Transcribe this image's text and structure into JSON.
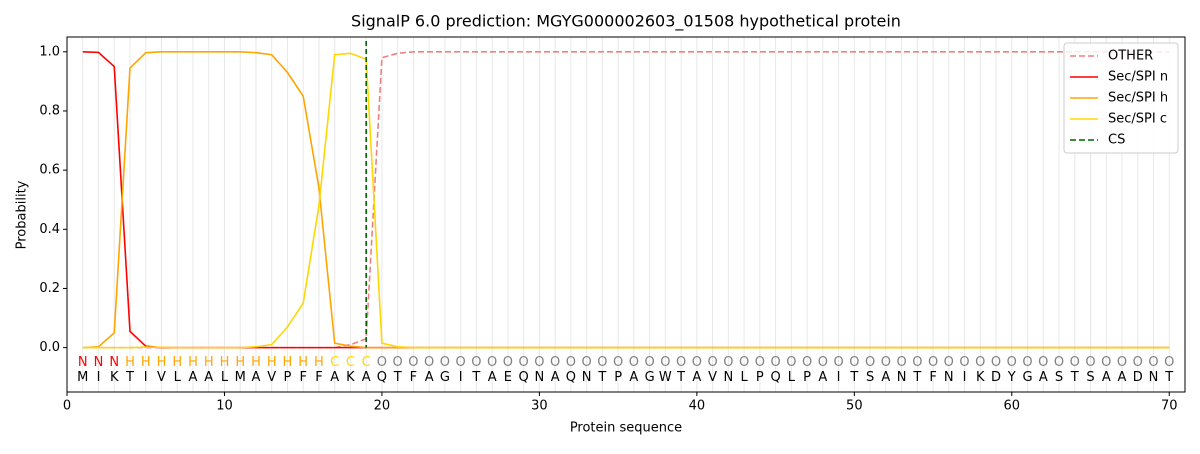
{
  "chart_data": {
    "type": "line",
    "title": "SignalP 6.0 prediction: MGYG000002603_01508 hypothetical protein",
    "xlabel": "Protein sequence",
    "ylabel": "Probability",
    "xlim": [
      0,
      71
    ],
    "ylim": [
      -0.15,
      1.05
    ],
    "xticks": [
      0,
      10,
      20,
      30,
      40,
      50,
      60,
      70
    ],
    "yticks": [
      {
        "value": 0,
        "label": "0.0"
      },
      {
        "value": 0.2,
        "label": "0.2"
      },
      {
        "value": 0.4,
        "label": "0.4"
      },
      {
        "value": 0.6,
        "label": "0.6"
      },
      {
        "value": 0.8,
        "label": "0.8"
      },
      {
        "value": 1,
        "label": "1.0"
      }
    ],
    "xgrid": true,
    "legend": "upper right",
    "x": [
      1,
      2,
      3,
      4,
      5,
      6,
      7,
      8,
      9,
      10,
      11,
      12,
      13,
      14,
      15,
      16,
      17,
      18,
      19,
      20,
      21,
      22,
      23,
      24,
      25,
      26,
      27,
      28,
      29,
      30,
      31,
      32,
      33,
      34,
      35,
      36,
      37,
      38,
      39,
      40,
      41,
      42,
      43,
      44,
      45,
      46,
      47,
      48,
      49,
      50,
      51,
      52,
      53,
      54,
      55,
      56,
      57,
      58,
      59,
      60,
      61,
      62,
      63,
      64,
      65,
      66,
      67,
      68,
      69,
      70
    ],
    "sequence": [
      "M",
      "I",
      "K",
      "T",
      "I",
      "V",
      "L",
      "A",
      "A",
      "L",
      "M",
      "A",
      "V",
      "P",
      "F",
      "F",
      "A",
      "K",
      "A",
      "Q",
      "T",
      "F",
      "A",
      "G",
      "I",
      "T",
      "A",
      "E",
      "Q",
      "N",
      "A",
      "Q",
      "N",
      "T",
      "P",
      "A",
      "G",
      "W",
      "T",
      "A",
      "V",
      "N",
      "L",
      "P",
      "Q",
      "L",
      "P",
      "A",
      "I",
      "T",
      "S",
      "A",
      "N",
      "T",
      "F",
      "N",
      "I",
      "K",
      "D",
      "Y",
      "G",
      "A",
      "S",
      "T",
      "S",
      "A",
      "A",
      "D",
      "N",
      "T"
    ],
    "labels": [
      "N",
      "N",
      "N",
      "H",
      "H",
      "H",
      "H",
      "H",
      "H",
      "H",
      "H",
      "H",
      "H",
      "H",
      "H",
      "H",
      "C",
      "C",
      "C",
      "O",
      "O",
      "O",
      "O",
      "O",
      "O",
      "O",
      "O",
      "O",
      "O",
      "O",
      "O",
      "O",
      "O",
      "O",
      "O",
      "O",
      "O",
      "O",
      "O",
      "O",
      "O",
      "O",
      "O",
      "O",
      "O",
      "O",
      "O",
      "O",
      "O",
      "O",
      "O",
      "O",
      "O",
      "O",
      "O",
      "O",
      "O",
      "O",
      "O",
      "O",
      "O",
      "O",
      "O",
      "O",
      "O",
      "O",
      "O",
      "O",
      "O",
      "O"
    ],
    "label_colors": {
      "N": "#ff0000",
      "H": "#ffa500",
      "C": "#ffd700",
      "O": "#808080"
    },
    "series": [
      {
        "name": "OTHER",
        "color": "#f08080",
        "dash": true,
        "values": [
          0,
          0,
          0,
          0,
          0,
          0,
          0,
          0,
          0,
          0,
          0,
          0,
          0,
          0,
          0,
          0,
          0,
          0.01,
          0.03,
          0.98,
          0.995,
          1,
          1,
          1,
          1,
          1,
          1,
          1,
          1,
          1,
          1,
          1,
          1,
          1,
          1,
          1,
          1,
          1,
          1,
          1,
          1,
          1,
          1,
          1,
          1,
          1,
          1,
          1,
          1,
          1,
          1,
          1,
          1,
          1,
          1,
          1,
          1,
          1,
          1,
          1,
          1,
          1,
          1,
          1,
          1,
          1,
          1,
          1,
          1,
          1
        ]
      },
      {
        "name": "Sec/SPI n",
        "color": "#ff0000",
        "values": [
          1,
          0.998,
          0.95,
          0.055,
          0.005,
          0,
          0,
          0,
          0,
          0,
          0,
          0,
          0,
          0,
          0,
          0,
          0,
          0,
          0,
          0,
          0,
          0,
          0,
          0,
          0,
          0,
          0,
          0,
          0,
          0,
          0,
          0,
          0,
          0,
          0,
          0,
          0,
          0,
          0,
          0,
          0,
          0,
          0,
          0,
          0,
          0,
          0,
          0,
          0,
          0,
          0,
          0,
          0,
          0,
          0,
          0,
          0,
          0,
          0,
          0,
          0,
          0,
          0,
          0,
          0,
          0,
          0,
          0,
          0,
          0
        ]
      },
      {
        "name": "Sec/SPI h",
        "color": "#ffa500",
        "values": [
          0,
          0.003,
          0.05,
          0.945,
          0.997,
          1,
          1,
          1,
          1,
          1,
          1,
          0.997,
          0.99,
          0.93,
          0.85,
          0.54,
          0.015,
          0.005,
          0,
          0,
          0,
          0,
          0,
          0,
          0,
          0,
          0,
          0,
          0,
          0,
          0,
          0,
          0,
          0,
          0,
          0,
          0,
          0,
          0,
          0,
          0,
          0,
          0,
          0,
          0,
          0,
          0,
          0,
          0,
          0,
          0,
          0,
          0,
          0,
          0,
          0,
          0,
          0,
          0,
          0,
          0,
          0,
          0,
          0,
          0,
          0,
          0,
          0,
          0,
          0
        ]
      },
      {
        "name": "Sec/SPI c",
        "color": "#ffd700",
        "values": [
          0,
          0,
          0,
          0,
          0.002,
          0.001,
          0,
          0,
          0,
          0,
          0,
          0.003,
          0.01,
          0.07,
          0.15,
          0.48,
          0.99,
          0.995,
          0.975,
          0.015,
          0.003,
          0,
          0,
          0,
          0,
          0,
          0,
          0,
          0,
          0,
          0,
          0,
          0,
          0,
          0,
          0,
          0,
          0,
          0,
          0,
          0,
          0,
          0,
          0,
          0,
          0,
          0,
          0,
          0,
          0,
          0,
          0,
          0,
          0,
          0,
          0,
          0,
          0,
          0,
          0,
          0,
          0,
          0,
          0,
          0,
          0,
          0,
          0,
          0,
          0
        ]
      }
    ],
    "cs": {
      "name": "CS",
      "x": 19,
      "color": "#006400"
    }
  }
}
